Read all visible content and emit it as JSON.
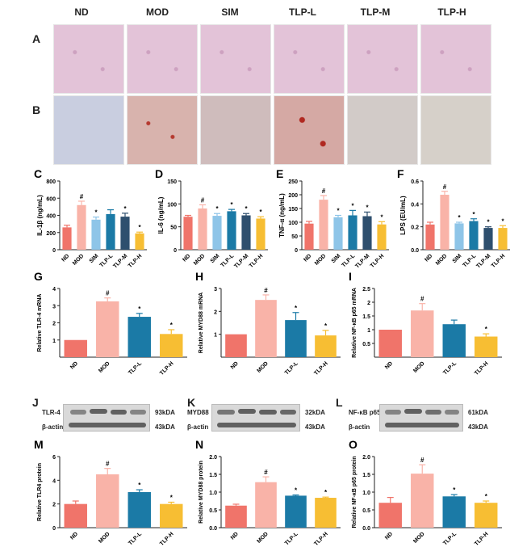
{
  "group_headers": [
    "ND",
    "MOD",
    "SIM",
    "TLP-L",
    "TLP-M",
    "TLP-H"
  ],
  "panel_letters": {
    "A": "A",
    "B": "B",
    "C": "C",
    "D": "D",
    "E": "E",
    "F": "F",
    "G": "G",
    "H": "H",
    "I": "I",
    "J": "J",
    "K": "K",
    "L": "L",
    "M": "M",
    "N": "N",
    "O": "O"
  },
  "colors": {
    "ND": "#f0746a",
    "MOD": "#f9b3a8",
    "SIM": "#8ec5e8",
    "TLP-L": "#1b7aa6",
    "TLP-M": "#2e4f6e",
    "TLP-H": "#f7be33"
  },
  "blots": {
    "J": {
      "target": "TLR-4",
      "target_kda": "93kDA",
      "ref": "β-actin",
      "ref_kda": "43kDA"
    },
    "K": {
      "target": "MYD88",
      "target_kda": "32kDA",
      "ref": "β-actin",
      "ref_kda": "43kDA"
    },
    "L": {
      "target": "NF-κB p65",
      "target_kda": "61kDA",
      "ref": "β-actin",
      "ref_kda": "43kDA"
    }
  },
  "chart_data": [
    {
      "id": "C",
      "type": "bar",
      "categories": [
        "ND",
        "MOD",
        "SIM",
        "TLP-L",
        "TLP-M",
        "TLP-H"
      ],
      "values": [
        260,
        520,
        350,
        415,
        385,
        190
      ],
      "errors": [
        25,
        45,
        30,
        50,
        40,
        15
      ],
      "marks": [
        "",
        "#",
        "*",
        "",
        "*",
        "*"
      ],
      "ylabel": "IL-1β (ng/mL)",
      "ylim": [
        0,
        800
      ],
      "yticks": [
        0,
        200,
        400,
        600,
        800
      ]
    },
    {
      "id": "D",
      "type": "bar",
      "categories": [
        "ND",
        "MOD",
        "SIM",
        "TLP-L",
        "TLP-M",
        "TLP-H"
      ],
      "values": [
        72,
        90,
        74,
        84,
        75,
        68
      ],
      "errors": [
        3,
        8,
        5,
        4,
        4,
        4
      ],
      "marks": [
        "",
        "#",
        "*",
        "*",
        "*",
        "*"
      ],
      "ylabel": "IL-6 (ng/mL)",
      "ylim": [
        0,
        150
      ],
      "yticks": [
        0,
        50,
        100,
        150
      ]
    },
    {
      "id": "E",
      "type": "bar",
      "categories": [
        "ND",
        "MOD",
        "SIM",
        "TLP-L",
        "TLP-M",
        "TLP-H"
      ],
      "values": [
        95,
        182,
        118,
        125,
        122,
        92
      ],
      "errors": [
        8,
        15,
        7,
        18,
        15,
        10
      ],
      "marks": [
        "",
        "#",
        "*",
        "*",
        "*",
        "*"
      ],
      "ylabel": "TNF-α (ng/mL)",
      "ylim": [
        0,
        250
      ],
      "yticks": [
        0,
        50,
        100,
        150,
        200,
        250
      ]
    },
    {
      "id": "F",
      "type": "bar",
      "categories": [
        "ND",
        "MOD",
        "SIM",
        "TLP-L",
        "TLP-M",
        "TLP-H"
      ],
      "values": [
        0.22,
        0.48,
        0.23,
        0.25,
        0.19,
        0.19
      ],
      "errors": [
        0.02,
        0.03,
        0.01,
        0.02,
        0.01,
        0.02
      ],
      "marks": [
        "",
        "#",
        "*",
        "*",
        "*",
        "*"
      ],
      "ylabel": "LPS (EU/mL)",
      "ylim": [
        0,
        0.6
      ],
      "yticks": [
        0.0,
        0.2,
        0.4,
        0.6
      ]
    },
    {
      "id": "G",
      "type": "bar",
      "categories": [
        "ND",
        "MOD",
        "TLP-L",
        "TLP-H"
      ],
      "values": [
        1.0,
        3.25,
        2.35,
        1.35
      ],
      "errors": [
        0,
        0.2,
        0.2,
        0.25
      ],
      "marks": [
        "",
        "#",
        "*",
        "*"
      ],
      "ylabel": "Relative TLR-4 mRNA",
      "ylim": [
        0,
        4
      ],
      "yticks": [
        1,
        2,
        3,
        4
      ]
    },
    {
      "id": "H",
      "type": "bar",
      "categories": [
        "ND",
        "MOD",
        "TLP-L",
        "TLP-H"
      ],
      "values": [
        1.0,
        2.5,
        1.62,
        0.95
      ],
      "errors": [
        0,
        0.22,
        0.33,
        0.22
      ],
      "marks": [
        "",
        "#",
        "*",
        "*"
      ],
      "ylabel": "Relative MYD88 mRNA",
      "ylim": [
        0,
        3
      ],
      "yticks": [
        1,
        2,
        3
      ]
    },
    {
      "id": "I",
      "type": "bar",
      "categories": [
        "ND",
        "MOD",
        "TLP-L",
        "TLP-H"
      ],
      "values": [
        1.0,
        1.7,
        1.2,
        0.75
      ],
      "errors": [
        0,
        0.25,
        0.15,
        0.1
      ],
      "marks": [
        "",
        "#",
        "",
        "*"
      ],
      "ylabel": "Relative NF-κB p65 mRNA",
      "ylim": [
        0,
        2.5
      ],
      "yticks": [
        0.5,
        1.0,
        1.5,
        2.0,
        2.5
      ]
    },
    {
      "id": "M",
      "type": "bar",
      "categories": [
        "ND",
        "MOD",
        "TLP-L",
        "TLP-H"
      ],
      "values": [
        2.0,
        4.5,
        3.0,
        2.0
      ],
      "errors": [
        0.25,
        0.5,
        0.2,
        0.15
      ],
      "marks": [
        "",
        "#",
        "*",
        "*"
      ],
      "ylabel": "Relative TLR4 protein",
      "ylim": [
        0,
        6
      ],
      "yticks": [
        0,
        2,
        4,
        6
      ]
    },
    {
      "id": "N",
      "type": "bar",
      "categories": [
        "ND",
        "MOD",
        "TLP-L",
        "TLP-H"
      ],
      "values": [
        0.62,
        1.28,
        0.9,
        0.84
      ],
      "errors": [
        0.04,
        0.15,
        0.02,
        0.02
      ],
      "marks": [
        "",
        "#",
        "*",
        "*"
      ],
      "ylabel": "Relative MYD88 protein",
      "ylim": [
        0,
        2.0
      ],
      "yticks": [
        0.0,
        0.5,
        1.0,
        1.5,
        2.0
      ]
    },
    {
      "id": "O",
      "type": "bar",
      "categories": [
        "ND",
        "MOD",
        "TLP-L",
        "TLP-H"
      ],
      "values": [
        0.7,
        1.52,
        0.88,
        0.7
      ],
      "errors": [
        0.15,
        0.25,
        0.05,
        0.05
      ],
      "marks": [
        "",
        "#",
        "*",
        "*"
      ],
      "ylabel": "Relative NF-κB p65 protein",
      "ylim": [
        0,
        2.0
      ],
      "yticks": [
        0.0,
        0.5,
        1.0,
        1.5,
        2.0
      ]
    }
  ]
}
